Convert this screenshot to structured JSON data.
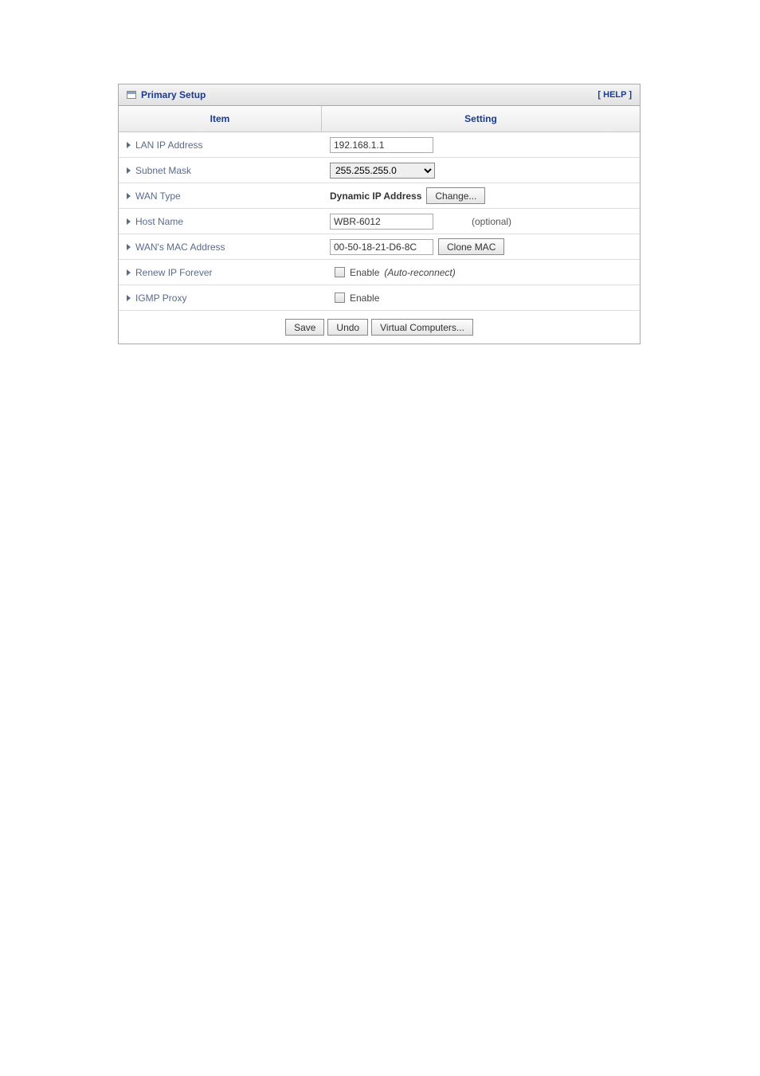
{
  "panel": {
    "title": "Primary Setup",
    "help_label": "[ HELP ]"
  },
  "columns": {
    "item": "Item",
    "setting": "Setting"
  },
  "rows": {
    "lan_ip": {
      "label": "LAN IP Address",
      "value": "192.168.1.1"
    },
    "subnet": {
      "label": "Subnet Mask",
      "value": "255.255.255.0"
    },
    "wan_type": {
      "label": "WAN Type",
      "value_label": "Dynamic IP Address",
      "change_btn": "Change..."
    },
    "host_name": {
      "label": "Host Name",
      "value": "WBR-6012",
      "optional_label": "(optional)"
    },
    "wan_mac": {
      "label": "WAN's MAC Address",
      "value": "00-50-18-21-D6-8C",
      "clone_btn": "Clone MAC"
    },
    "renew_ip": {
      "label": "Renew IP Forever",
      "enable_label": "Enable",
      "suffix": "(Auto-reconnect)"
    },
    "igmp": {
      "label": "IGMP Proxy",
      "enable_label": "Enable"
    }
  },
  "buttons": {
    "save": "Save",
    "undo": "Undo",
    "virtual_computers": "Virtual Computers..."
  }
}
